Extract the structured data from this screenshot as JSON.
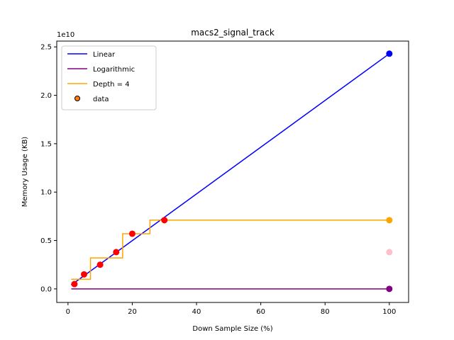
{
  "chart_data": {
    "type": "line",
    "title": "macs2_signal_track",
    "xlabel": "Down Sample Size (%)",
    "ylabel": "Memory Usage (KB)",
    "y_offset_label": "1e10",
    "xlim": [
      -3.5,
      106
    ],
    "ylim": [
      -0.14,
      2.56
    ],
    "y_multiplier": 10000000000,
    "x_ticks": [
      0,
      20,
      40,
      60,
      80,
      100
    ],
    "x_tick_labels": [
      "0",
      "20",
      "40",
      "60",
      "80",
      "100"
    ],
    "y_ticks": [
      0.0,
      0.5,
      1.0,
      1.5,
      2.0,
      2.5
    ],
    "y_tick_labels": [
      "0.0",
      "0.5",
      "1.0",
      "1.5",
      "2.0",
      "2.5"
    ],
    "grid": false,
    "legend_placement": "top-left",
    "legend": [
      {
        "label": "Linear",
        "kind": "line",
        "color": "#0000ff"
      },
      {
        "label": "Logarithmic",
        "kind": "line",
        "color": "#800080"
      },
      {
        "label": "Depth = 4",
        "kind": "line",
        "color": "#ffa500"
      },
      {
        "label": "data",
        "kind": "marker",
        "color": "#ff7f0e"
      }
    ],
    "series": [
      {
        "name": "Linear",
        "kind": "line",
        "color": "#0000ff",
        "x": [
          1,
          100
        ],
        "y": [
          0.04,
          2.43
        ]
      },
      {
        "name": "Logarithmic",
        "kind": "line",
        "color": "#800080",
        "x": [
          1,
          100
        ],
        "y": [
          0.0,
          0.0
        ]
      },
      {
        "name": "Depth = 4",
        "kind": "step",
        "color": "#ffa500",
        "x": [
          1,
          7,
          7,
          17,
          17,
          25.5,
          25.5,
          100
        ],
        "y": [
          0.1,
          0.1,
          0.32,
          0.32,
          0.57,
          0.57,
          0.71,
          0.71
        ]
      },
      {
        "name": "data",
        "kind": "scatter",
        "color": "#ff0000",
        "x": [
          2,
          5,
          10,
          15,
          20,
          30
        ],
        "y": [
          0.05,
          0.15,
          0.25,
          0.38,
          0.57,
          0.71
        ]
      },
      {
        "name": "linear-end",
        "kind": "scatter",
        "color": "#0000ff",
        "x": [
          100
        ],
        "y": [
          2.43
        ]
      },
      {
        "name": "depth-end",
        "kind": "scatter",
        "color": "#ffa500",
        "x": [
          100
        ],
        "y": [
          0.71
        ]
      },
      {
        "name": "pink-end",
        "kind": "scatter",
        "color": "#ffc0cb",
        "x": [
          100
        ],
        "y": [
          0.38
        ]
      },
      {
        "name": "log-end",
        "kind": "scatter",
        "color": "#800080",
        "x": [
          100
        ],
        "y": [
          0.0
        ]
      }
    ]
  }
}
